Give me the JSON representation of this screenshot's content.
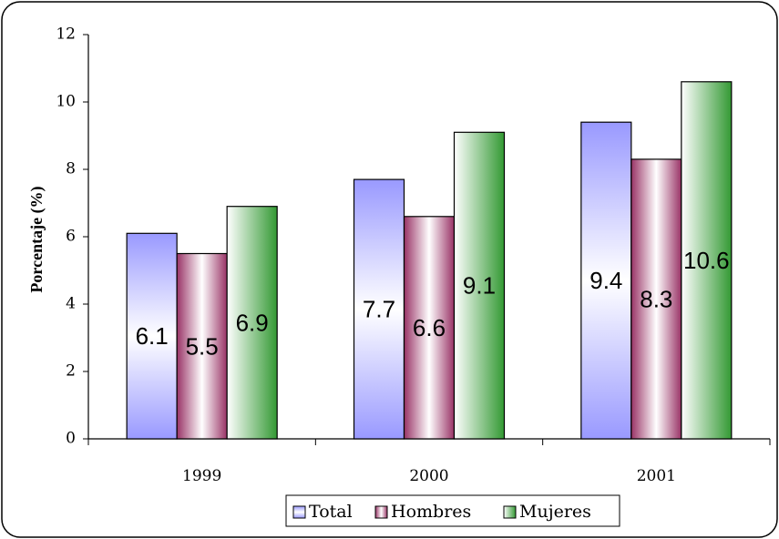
{
  "chart_data": {
    "type": "bar",
    "title": "",
    "xlabel": "",
    "ylabel": "Porcentaje (%)",
    "ylim": [
      0,
      12
    ],
    "yticks": [
      0,
      2,
      4,
      6,
      8,
      10,
      12
    ],
    "categories": [
      "1999",
      "2000",
      "2001"
    ],
    "series": [
      {
        "name": "Total",
        "values": [
          6.1,
          7.7,
          9.4
        ],
        "color": "#9999ff",
        "value_labels": [
          "6.1",
          "7.7",
          "9.4"
        ]
      },
      {
        "name": "Hombres",
        "values": [
          5.5,
          6.6,
          8.3
        ],
        "color": "#993366",
        "value_labels": [
          "5.5",
          "6.6",
          "8.3"
        ]
      },
      {
        "name": "Mujeres",
        "values": [
          6.9,
          9.1,
          10.6
        ],
        "color": "#339933",
        "value_labels": [
          "6.9",
          "9.1",
          "10.6"
        ]
      }
    ],
    "legend_position": "bottom-center",
    "grid": false
  }
}
